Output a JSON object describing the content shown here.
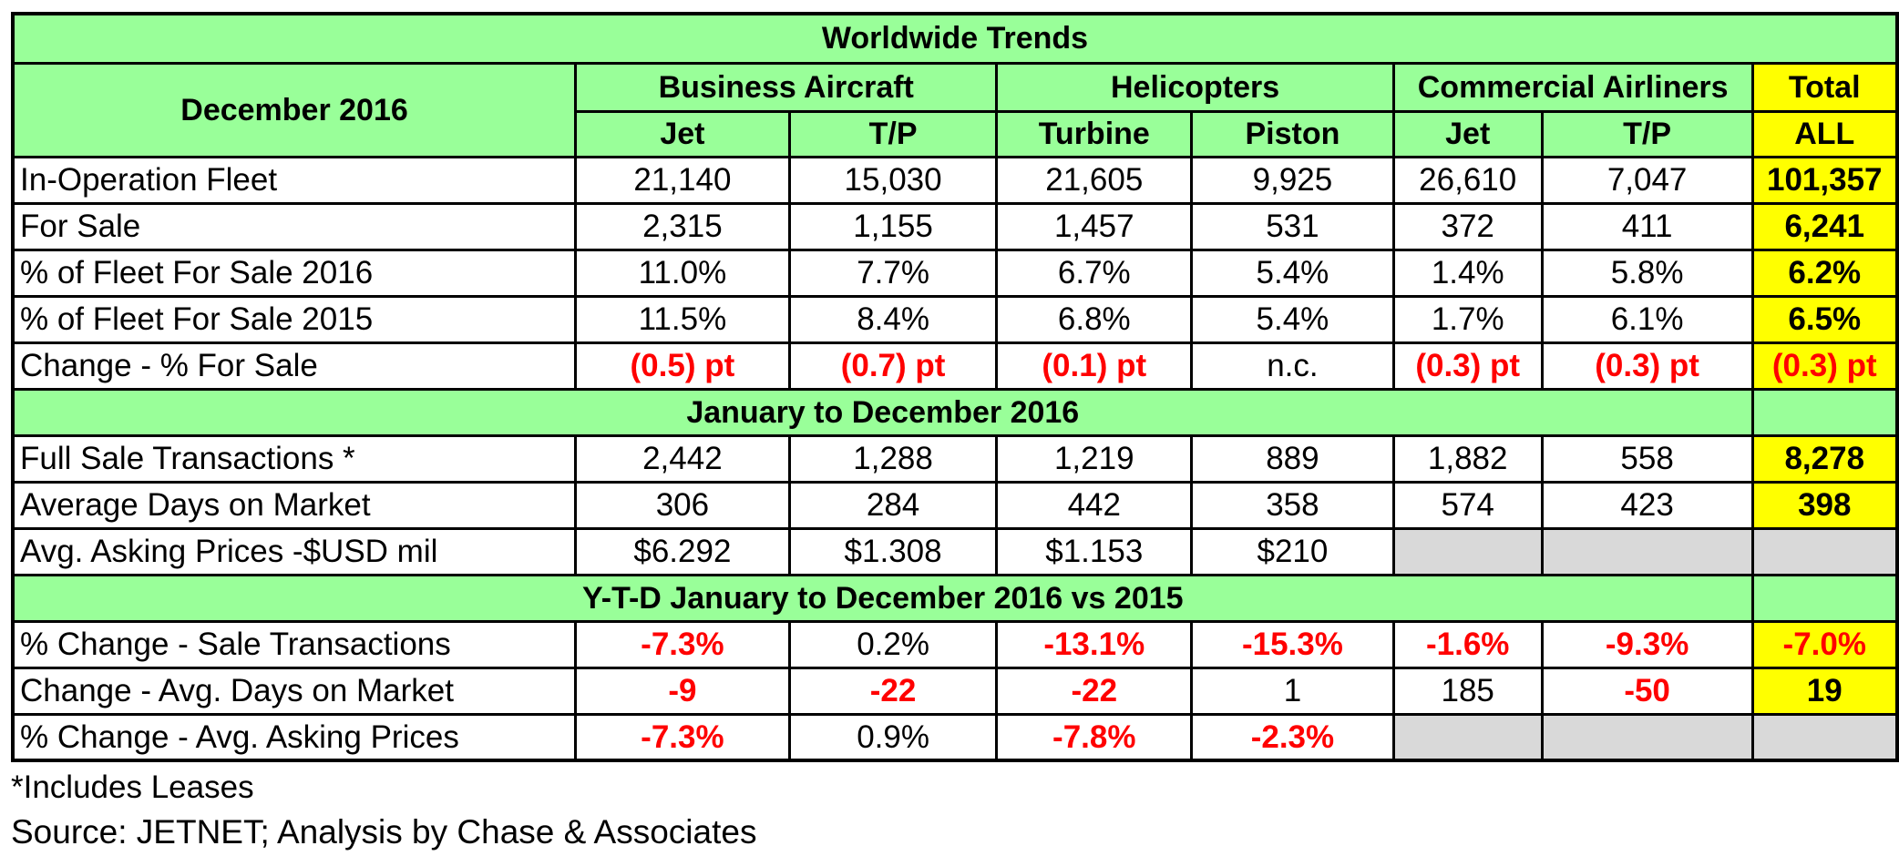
{
  "title": "Worldwide Trends",
  "period_label": "December 2016",
  "groups": [
    {
      "label": "Business Aircraft",
      "subs": [
        "Jet",
        "T/P"
      ]
    },
    {
      "label": "Helicopters",
      "subs": [
        "Turbine",
        "Piston"
      ]
    },
    {
      "label": "Commercial Airliners",
      "subs": [
        "Jet",
        "T/P"
      ]
    }
  ],
  "total": {
    "label": "Total",
    "sub": "ALL"
  },
  "colors": {
    "header_fill": "#99FF99",
    "total_fill": "#FFFF00",
    "na_fill": "#D9D9D9",
    "negative_text": "#FF0000"
  },
  "sections": [
    {
      "heading": "",
      "rows": [
        {
          "label": "In-Operation Fleet",
          "values": [
            "21,140",
            "15,030",
            "21,605",
            "9,925",
            "26,610",
            "7,047"
          ],
          "total": "101,357"
        },
        {
          "label": "For Sale",
          "values": [
            "2,315",
            "1,155",
            "1,457",
            "531",
            "372",
            "411"
          ],
          "total": "6,241"
        },
        {
          "label": "% of Fleet For Sale 2016",
          "values": [
            "11.0%",
            "7.7%",
            "6.7%",
            "5.4%",
            "1.4%",
            "5.8%"
          ],
          "total": "6.2%"
        },
        {
          "label": "% of Fleet For Sale 2015",
          "values": [
            "11.5%",
            "8.4%",
            "6.8%",
            "5.4%",
            "1.7%",
            "6.1%"
          ],
          "total": "6.5%"
        },
        {
          "label": "Change - % For Sale",
          "values": [
            "(0.5) pt",
            "(0.7) pt",
            "(0.1) pt",
            "n.c.",
            "(0.3) pt",
            "(0.3) pt"
          ],
          "total": "(0.3) pt"
        }
      ]
    },
    {
      "heading": "January to December 2016",
      "rows": [
        {
          "label": "Full Sale Transactions *",
          "values": [
            "2,442",
            "1,288",
            "1,219",
            "889",
            "1,882",
            "558"
          ],
          "total": "8,278"
        },
        {
          "label": "Average Days on Market",
          "values": [
            "306",
            "284",
            "442",
            "358",
            "574",
            "423"
          ],
          "total": "398"
        },
        {
          "label": "Avg. Asking Prices -$USD mil",
          "values": [
            "$6.292",
            "$1.308",
            "$1.153",
            "$210",
            null,
            null
          ],
          "total": null
        }
      ]
    },
    {
      "heading": "Y-T-D January to December 2016 vs 2015",
      "rows": [
        {
          "label": "% Change  - Sale Transactions",
          "values": [
            "-7.3%",
            "0.2%",
            "-13.1%",
            "-15.3%",
            "-1.6%",
            "-9.3%"
          ],
          "total": "-7.0%"
        },
        {
          "label": "Change -  Avg. Days on Market",
          "values": [
            "-9",
            "-22",
            "-22",
            "1",
            "185",
            "-50"
          ],
          "total": "19"
        },
        {
          "label": "% Change - Avg. Asking Prices",
          "values": [
            "-7.3%",
            "0.9%",
            "-7.8%",
            "-2.3%",
            null,
            null
          ],
          "total": null
        }
      ]
    }
  ],
  "footnotes": [
    "*Includes Leases",
    "Source: JETNET; Analysis by Chase & Associates"
  ]
}
